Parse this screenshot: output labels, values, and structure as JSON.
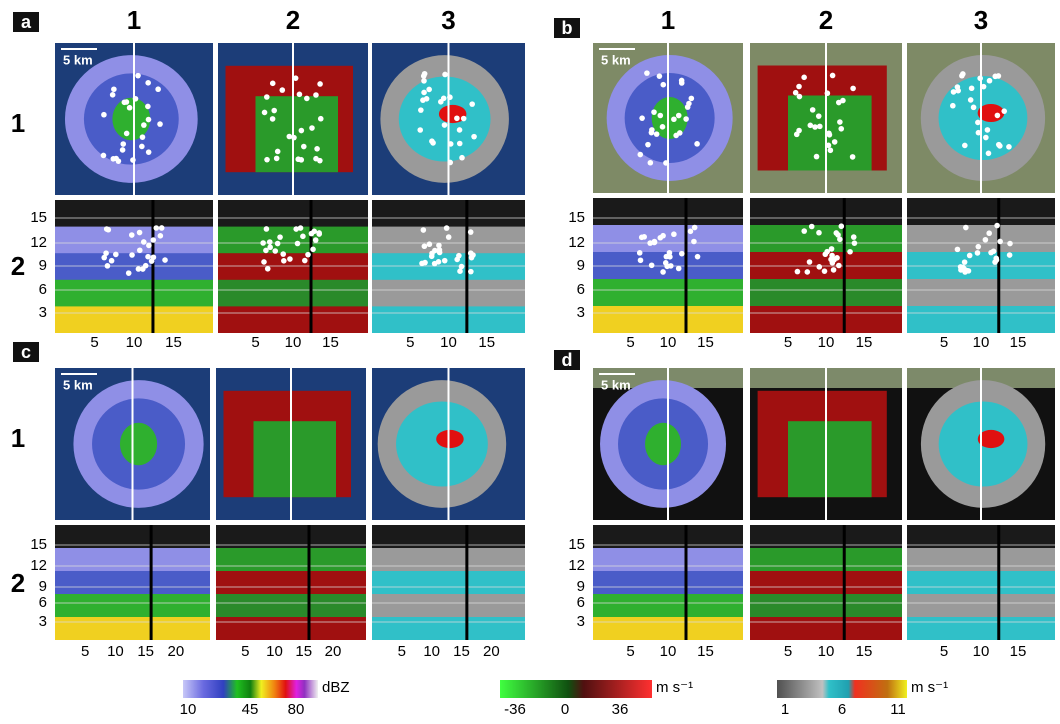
{
  "panels": [
    {
      "label": "a",
      "column_headers": [
        "1",
        "2",
        "3"
      ],
      "row_labels": [
        "1",
        "2"
      ],
      "scale_bar": "5 km",
      "y_ticks": [
        "15",
        "12",
        "9",
        "6",
        "3"
      ],
      "x_ticks": [
        "5",
        "10",
        "15"
      ]
    },
    {
      "label": "b",
      "column_headers": [
        "1",
        "2",
        "3"
      ],
      "scale_bar": "5 km",
      "y_ticks": [
        "15",
        "12",
        "9",
        "6",
        "3"
      ],
      "x_ticks": [
        "5",
        "10",
        "15"
      ]
    },
    {
      "label": "c",
      "row_labels": [
        "1",
        "2"
      ],
      "scale_bar": "5 km",
      "y_ticks": [
        "15",
        "12",
        "9",
        "6",
        "3"
      ],
      "x_ticks": [
        "5",
        "10",
        "15",
        "20"
      ]
    },
    {
      "label": "d",
      "scale_bar": "5 km",
      "y_ticks": [
        "15",
        "12",
        "9",
        "6",
        "3"
      ],
      "x_ticks": [
        "5",
        "10",
        "15"
      ]
    }
  ],
  "colorbars": [
    {
      "unit": "dBZ",
      "ticks": [
        "10",
        "45",
        "80"
      ]
    },
    {
      "unit": "m s⁻¹",
      "ticks": [
        "-36",
        "0",
        "36"
      ]
    },
    {
      "unit": "m s⁻¹",
      "ticks": [
        "1",
        "6",
        "11"
      ]
    }
  ]
}
